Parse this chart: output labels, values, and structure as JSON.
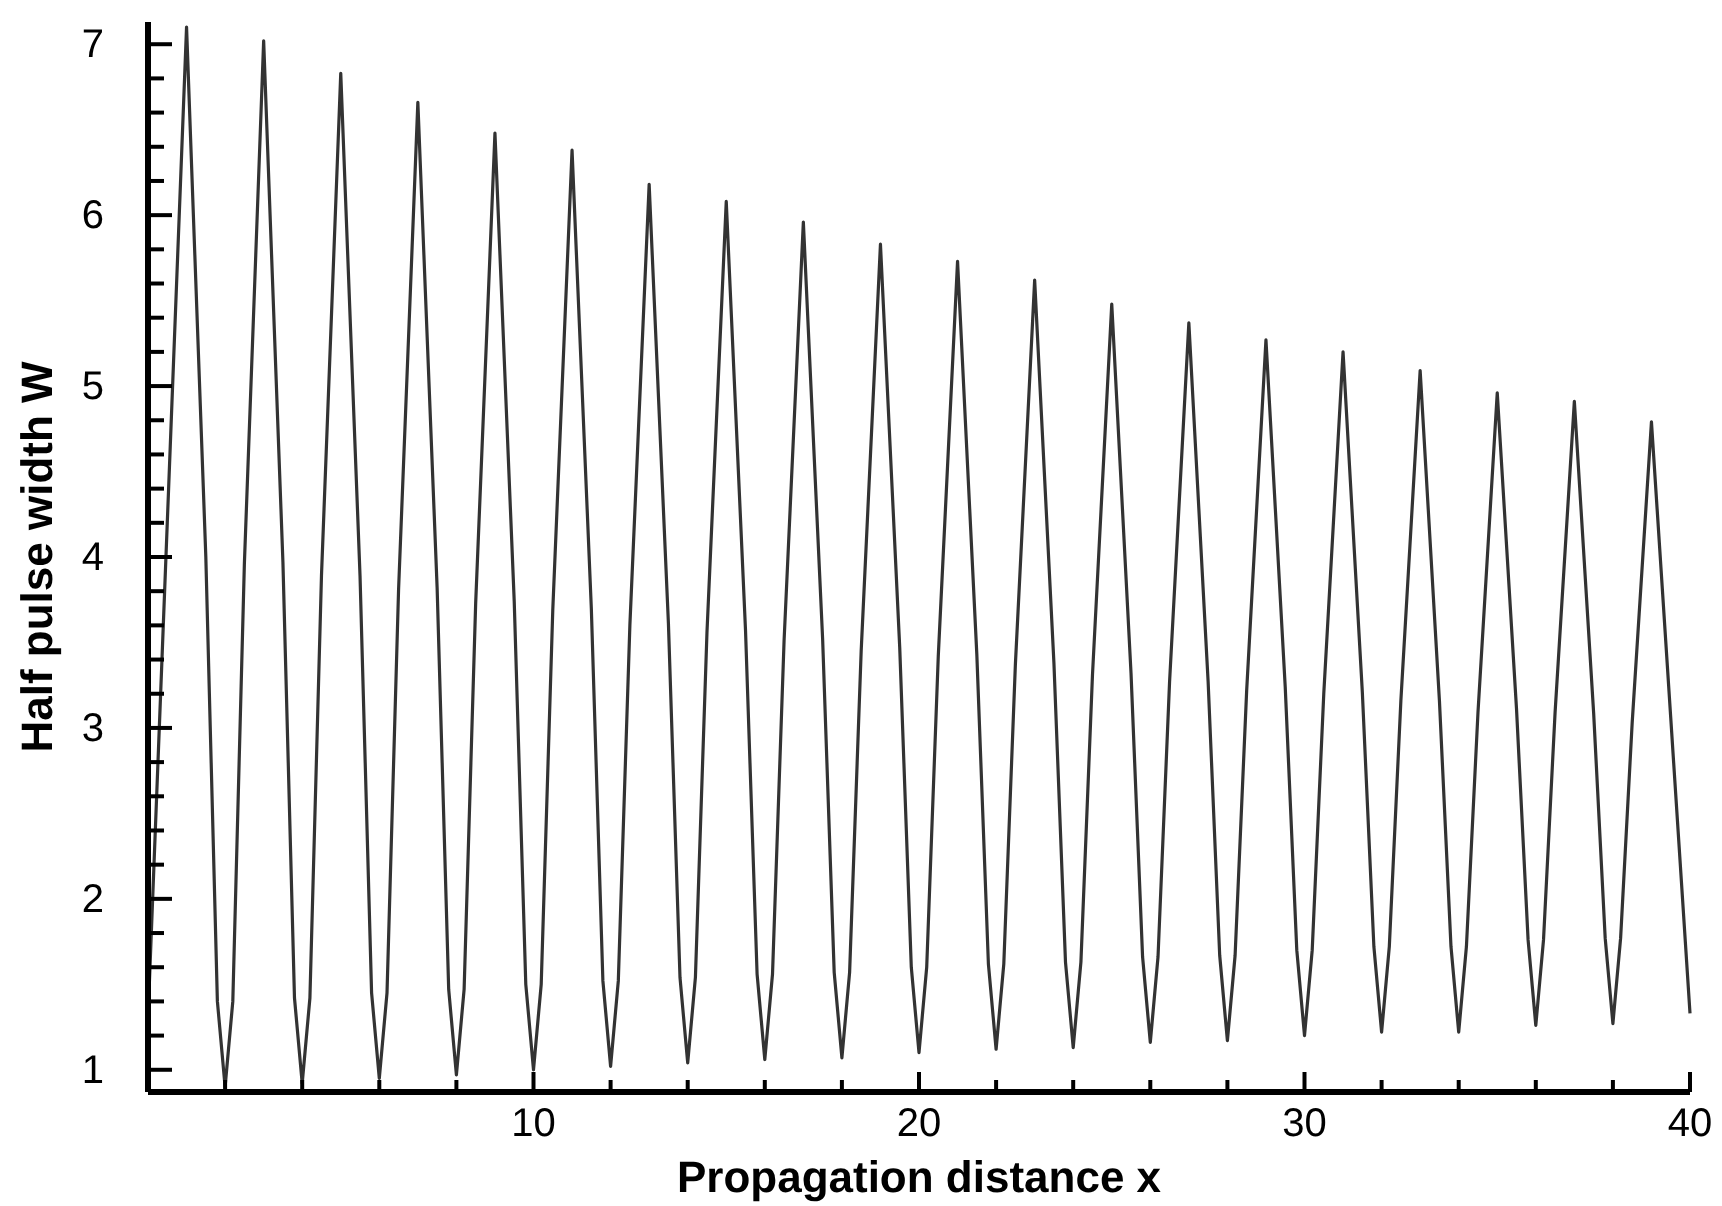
{
  "chart_data": {
    "type": "line",
    "xlabel": "Propagation distance x",
    "ylabel": "Half pulse width W",
    "xlim": [
      0,
      40
    ],
    "ylim": [
      0.87,
      7.13
    ],
    "xticks": [
      {
        "value": 2,
        "label": null
      },
      {
        "value": 4,
        "label": null
      },
      {
        "value": 6,
        "label": null
      },
      {
        "value": 8,
        "label": null
      },
      10,
      {
        "value": 12,
        "label": null
      },
      {
        "value": 14,
        "label": null
      },
      {
        "value": 16,
        "label": null
      },
      {
        "value": 18,
        "label": null
      },
      20,
      {
        "value": 22,
        "label": null
      },
      {
        "value": 24,
        "label": null
      },
      {
        "value": 26,
        "label": null
      },
      {
        "value": 28,
        "label": null
      },
      30,
      {
        "value": 32,
        "label": null
      },
      {
        "value": 34,
        "label": null
      },
      {
        "value": 36,
        "label": null
      },
      {
        "value": 38,
        "label": null
      },
      40
    ],
    "yticks": [
      1,
      {
        "value": 1.2,
        "label": null
      },
      {
        "value": 1.4,
        "label": null
      },
      {
        "value": 1.6,
        "label": null
      },
      {
        "value": 1.8,
        "label": null
      },
      2,
      {
        "value": 2.2,
        "label": null
      },
      {
        "value": 2.4,
        "label": null
      },
      {
        "value": 2.6,
        "label": null
      },
      {
        "value": 2.8,
        "label": null
      },
      3,
      {
        "value": 3.2,
        "label": null
      },
      {
        "value": 3.4,
        "label": null
      },
      {
        "value": 3.6,
        "label": null
      },
      {
        "value": 3.8,
        "label": null
      },
      4,
      {
        "value": 4.2,
        "label": null
      },
      {
        "value": 4.4,
        "label": null
      },
      {
        "value": 4.6,
        "label": null
      },
      {
        "value": 4.8,
        "label": null
      },
      5,
      {
        "value": 5.2,
        "label": null
      },
      {
        "value": 5.4,
        "label": null
      },
      {
        "value": 5.6,
        "label": null
      },
      {
        "value": 5.8,
        "label": null
      },
      6,
      {
        "value": 6.2,
        "label": null
      },
      {
        "value": 6.4,
        "label": null
      },
      {
        "value": 6.6,
        "label": null
      },
      {
        "value": 6.8,
        "label": null
      },
      7
    ],
    "grid": false,
    "marker": "none",
    "line_style": "solid",
    "series": [
      {
        "color": "#333333",
        "x": [
          0,
          0.5,
          1,
          1.5,
          1.8,
          2,
          2.2,
          2.5,
          3,
          3.5,
          3.8,
          4,
          4.2,
          4.5,
          5,
          5.5,
          5.8,
          6,
          6.2,
          6.5,
          7,
          7.5,
          7.8,
          8,
          8.2,
          8.5,
          9,
          9.5,
          9.8,
          10,
          10.2,
          10.5,
          11,
          11.5,
          11.8,
          12,
          12.2,
          12.5,
          13,
          13.5,
          13.8,
          14,
          14.2,
          14.5,
          15,
          15.5,
          15.8,
          16,
          16.2,
          16.5,
          17,
          17.5,
          17.8,
          18,
          18.2,
          18.5,
          19,
          19.5,
          19.8,
          20,
          20.2,
          20.5,
          21,
          21.5,
          21.8,
          22,
          22.2,
          22.5,
          23,
          23.5,
          23.8,
          24,
          24.2,
          24.5,
          25,
          25.5,
          25.8,
          26,
          26.2,
          26.5,
          27,
          27.5,
          27.8,
          28,
          28.2,
          28.5,
          29,
          29.5,
          29.8,
          30,
          30.2,
          30.5,
          31,
          31.5,
          31.8,
          32,
          32.2,
          32.5,
          33,
          33.5,
          33.8,
          34,
          34.2,
          34.5,
          35,
          35.5,
          35.8,
          36,
          36.2,
          36.5,
          37,
          37.5,
          37.8,
          38,
          38.2,
          38.5,
          39,
          39.5,
          40
        ],
        "values": [
          1.3,
          4.2,
          7.1,
          4.0,
          1.4,
          0.9,
          1.4,
          3.96,
          7.02,
          3.97,
          1.42,
          0.92,
          1.42,
          3.89,
          6.83,
          3.89,
          1.45,
          0.95,
          1.45,
          3.81,
          6.66,
          3.82,
          1.47,
          0.97,
          1.47,
          3.73,
          6.48,
          3.74,
          1.5,
          1.0,
          1.5,
          3.69,
          6.38,
          3.7,
          1.52,
          1.02,
          1.52,
          3.6,
          6.18,
          3.61,
          1.54,
          1.04,
          1.54,
          3.56,
          6.08,
          3.57,
          1.56,
          1.06,
          1.56,
          3.51,
          5.96,
          3.52,
          1.57,
          1.07,
          1.57,
          3.45,
          5.83,
          3.47,
          1.6,
          1.1,
          1.6,
          3.42,
          5.73,
          3.43,
          1.62,
          1.12,
          1.62,
          3.37,
          5.62,
          3.38,
          1.63,
          1.13,
          1.63,
          3.31,
          5.48,
          3.32,
          1.66,
          1.16,
          1.66,
          3.27,
          5.37,
          3.27,
          1.67,
          1.17,
          1.67,
          3.22,
          5.27,
          3.24,
          1.7,
          1.2,
          1.7,
          3.2,
          5.2,
          3.21,
          1.72,
          1.22,
          1.72,
          3.16,
          5.09,
          3.16,
          1.72,
          1.22,
          1.72,
          3.09,
          4.96,
          3.11,
          1.76,
          1.26,
          1.76,
          3.09,
          4.91,
          3.09,
          1.77,
          1.27,
          1.77,
          3.03,
          4.79,
          3.06,
          1.33
        ]
      }
    ]
  }
}
